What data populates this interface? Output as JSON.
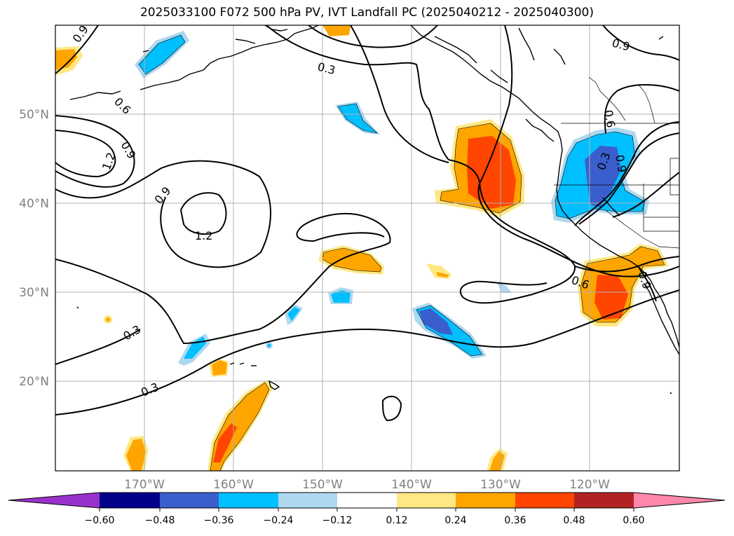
{
  "title": "2025033100 F072 500 hPa PV, IVT Landfall PC (2025040212 - 2025040300)",
  "map": {
    "lon_labels": [
      "170°W",
      "160°W",
      "150°W",
      "140°W",
      "130°W",
      "120°W"
    ],
    "lat_labels": [
      "50°N",
      "40°N",
      "30°N",
      "20°N"
    ],
    "contour_labels": [
      "0.9",
      "0.3",
      "0.6",
      "0.9",
      "1.2",
      "0.9",
      "1.2",
      "0.3",
      "0.3",
      "0.9",
      "0.6",
      "0.9",
      "0.3",
      "0.6",
      "0.9"
    ]
  },
  "colorbar": {
    "labels": [
      "−0.60",
      "−0.48",
      "−0.36",
      "−0.24",
      "−0.12",
      "0.12",
      "0.24",
      "0.36",
      "0.48",
      "0.60"
    ],
    "colors": [
      "#9932cc",
      "#00008b",
      "#3a5fcd",
      "#00bfff",
      "#add8f0",
      "#ffffff",
      "#ffe884",
      "#ffa500",
      "#ff4500",
      "#b22222",
      "#ff88aa"
    ]
  }
}
